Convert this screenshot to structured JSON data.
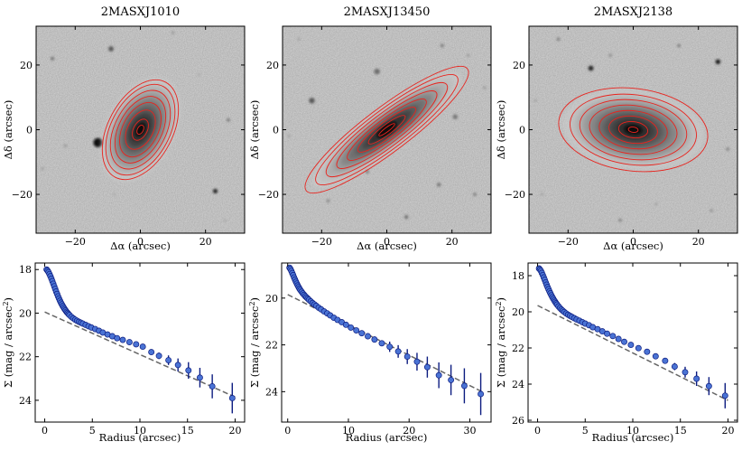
{
  "figure": {
    "colors": {
      "ellipse": "#e8241e",
      "marker_fill": "#4a73d4",
      "marker_edge": "#0c1c80",
      "errorbar": "#0c1c80",
      "fit_line": "#666666"
    },
    "image_xlabel": "Δα (arcsec)",
    "image_ylabel": "Δδ (arcsec)",
    "profile_xlabel": "Radius (arcsec)",
    "profile_ylabel": "Σ (mag / arcsec",
    "profile_ylabel_sup": "2",
    "profile_ylabel_end": ")"
  },
  "chart_data": [
    {
      "type": "image",
      "title": "2MASXJ1010",
      "xlabel": "Δα (arcsec)",
      "ylabel": "Δδ (arcsec)",
      "xlim": [
        -32,
        32
      ],
      "ylim": [
        -32,
        32
      ],
      "xticks": [
        -20,
        0,
        20
      ],
      "yticks": [
        -20,
        0,
        20
      ],
      "galaxy": {
        "semi_major": 13.5,
        "axis_ratio": 0.6,
        "position_angle_deg": 62
      },
      "isophote_semi_major": [
        1.5,
        3.5,
        6.5,
        9,
        11,
        13,
        15,
        16.5
      ]
    },
    {
      "type": "image",
      "title": "2MASXJ13450",
      "xlabel": "Δα (arcsec)",
      "ylabel": "Δδ (arcsec)",
      "xlim": [
        -32,
        32
      ],
      "ylim": [
        -32,
        32
      ],
      "xticks": [
        -20,
        0,
        20
      ],
      "yticks": [
        -20,
        0,
        20
      ],
      "galaxy": {
        "semi_major": 22,
        "axis_ratio": 0.22,
        "position_angle_deg": 37
      },
      "isophote_semi_major": [
        3,
        7,
        11,
        15,
        19,
        23,
        27,
        31
      ]
    },
    {
      "type": "image",
      "title": "2MASXJ2138",
      "xlabel": "Δα (arcsec)",
      "ylabel": "Δδ (arcsec)",
      "xlim": [
        -32,
        32
      ],
      "ylim": [
        -32,
        32
      ],
      "xticks": [
        -20,
        0,
        20
      ],
      "yticks": [
        -20,
        0,
        20
      ],
      "galaxy": {
        "semi_major": 17,
        "axis_ratio": 0.55,
        "position_angle_deg": -7
      },
      "isophote_semi_major": [
        1.5,
        4.5,
        7.5,
        10.5,
        13.5,
        16.5,
        19.5,
        23
      ]
    },
    {
      "type": "scatter",
      "xlabel": "Radius (arcsec)",
      "ylabel": "Σ (mag / arcsec²)",
      "xlim": [
        -1,
        21
      ],
      "ylim": [
        25,
        17.7
      ],
      "xticks": [
        0,
        5,
        10,
        15,
        20
      ],
      "yticks": [
        18,
        20,
        22,
        24
      ],
      "fit_line": {
        "x": [
          0,
          20
        ],
        "y": [
          19.95,
          23.85
        ]
      },
      "x": [
        0.2,
        0.3,
        0.4,
        0.5,
        0.6,
        0.7,
        0.8,
        0.9,
        1.0,
        1.1,
        1.2,
        1.3,
        1.4,
        1.5,
        1.6,
        1.7,
        1.8,
        1.9,
        2.0,
        2.1,
        2.2,
        2.3,
        2.4,
        2.5,
        2.6,
        2.8,
        3.0,
        3.2,
        3.4,
        3.6,
        3.8,
        4.0,
        4.3,
        4.6,
        4.9,
        5.3,
        5.7,
        6.1,
        6.6,
        7.1,
        7.6,
        8.2,
        8.9,
        9.6,
        10.3,
        11.2,
        12.0,
        13.0,
        14.0,
        15.1,
        16.3,
        17.6,
        19.7
      ],
      "y": [
        18.0,
        18.05,
        18.12,
        18.21,
        18.31,
        18.42,
        18.53,
        18.65,
        18.77,
        18.89,
        19.01,
        19.12,
        19.23,
        19.33,
        19.43,
        19.52,
        19.6,
        19.68,
        19.75,
        19.82,
        19.88,
        19.94,
        19.99,
        20.04,
        20.09,
        20.17,
        20.24,
        20.3,
        20.35,
        20.4,
        20.44,
        20.48,
        20.54,
        20.6,
        20.66,
        20.73,
        20.81,
        20.89,
        20.98,
        21.06,
        21.15,
        21.23,
        21.33,
        21.43,
        21.54,
        21.79,
        21.96,
        22.16,
        22.38,
        22.63,
        22.96,
        23.36,
        23.9
      ],
      "yerr": [
        0,
        0,
        0,
        0,
        0,
        0,
        0,
        0,
        0,
        0,
        0,
        0,
        0,
        0,
        0,
        0,
        0,
        0,
        0,
        0,
        0,
        0,
        0,
        0,
        0,
        0,
        0,
        0,
        0,
        0,
        0,
        0,
        0,
        0,
        0,
        0,
        0,
        0,
        0,
        0,
        0,
        0,
        0,
        0,
        0.05,
        0.1,
        0.15,
        0.22,
        0.3,
        0.38,
        0.45,
        0.55,
        0.7
      ]
    },
    {
      "type": "scatter",
      "xlabel": "Radius (arcsec)",
      "ylabel": "Σ (mag / arcsec²)",
      "xlim": [
        -1,
        33.5
      ],
      "ylim": [
        25.3,
        18.5
      ],
      "xticks": [
        0,
        10,
        20,
        30
      ],
      "yticks": [
        20,
        22,
        24
      ],
      "fit_line": {
        "x": [
          0,
          32
        ],
        "y": [
          19.85,
          24.0
        ]
      },
      "x": [
        0.3,
        0.45,
        0.6,
        0.75,
        0.9,
        1.05,
        1.2,
        1.35,
        1.5,
        1.65,
        1.8,
        1.95,
        2.1,
        2.3,
        2.5,
        2.7,
        2.9,
        3.1,
        3.3,
        3.5,
        3.8,
        4.1,
        4.4,
        4.7,
        5.1,
        5.5,
        6.0,
        6.5,
        7.0,
        7.6,
        8.2,
        8.9,
        9.6,
        10.4,
        11.3,
        12.2,
        13.2,
        14.3,
        15.5,
        16.8,
        18.2,
        19.7,
        21.3,
        23.0,
        24.9,
        26.9,
        29.1,
        31.8
      ],
      "y": [
        18.7,
        18.76,
        18.84,
        18.93,
        19.02,
        19.12,
        19.21,
        19.3,
        19.38,
        19.46,
        19.53,
        19.6,
        19.66,
        19.73,
        19.8,
        19.86,
        19.92,
        19.97,
        20.02,
        20.07,
        20.14,
        20.21,
        20.27,
        20.33,
        20.41,
        20.48,
        20.57,
        20.65,
        20.74,
        20.84,
        20.93,
        21.03,
        21.14,
        21.26,
        21.38,
        21.5,
        21.63,
        21.77,
        21.93,
        22.08,
        22.28,
        22.5,
        22.72,
        22.95,
        23.3,
        23.5,
        23.75,
        24.1
      ],
      "yerr": [
        0,
        0,
        0,
        0,
        0,
        0,
        0,
        0,
        0,
        0,
        0,
        0,
        0,
        0,
        0,
        0,
        0,
        0,
        0,
        0,
        0,
        0,
        0,
        0,
        0,
        0,
        0,
        0,
        0,
        0,
        0,
        0,
        0,
        0,
        0,
        0,
        0,
        0,
        0,
        0.22,
        0.27,
        0.32,
        0.38,
        0.45,
        0.55,
        0.65,
        0.75,
        0.9
      ]
    },
    {
      "type": "scatter",
      "xlabel": "Radius (arcsec)",
      "ylabel": "Σ (mag / arcsec²)",
      "xlim": [
        -1,
        21
      ],
      "ylim": [
        26.1,
        17.3
      ],
      "xticks": [
        0,
        5,
        10,
        15,
        20
      ],
      "yticks": [
        18,
        20,
        22,
        24,
        26
      ],
      "fit_line": {
        "x": [
          0,
          20
        ],
        "y": [
          19.65,
          24.9
        ]
      },
      "x": [
        0.15,
        0.25,
        0.35,
        0.45,
        0.55,
        0.65,
        0.75,
        0.85,
        0.95,
        1.05,
        1.15,
        1.25,
        1.35,
        1.45,
        1.55,
        1.65,
        1.75,
        1.85,
        1.95,
        2.05,
        2.2,
        2.35,
        2.5,
        2.65,
        2.8,
        3.0,
        3.2,
        3.4,
        3.6,
        3.85,
        4.1,
        4.4,
        4.7,
        5.0,
        5.4,
        5.8,
        6.3,
        6.8,
        7.3,
        7.9,
        8.5,
        9.1,
        9.8,
        10.6,
        11.5,
        12.4,
        13.4,
        14.4,
        15.5,
        16.7,
        18.0,
        19.7
      ],
      "y": [
        17.6,
        17.66,
        17.74,
        17.85,
        17.97,
        18.1,
        18.23,
        18.37,
        18.5,
        18.63,
        18.75,
        18.87,
        18.98,
        19.09,
        19.19,
        19.28,
        19.37,
        19.45,
        19.53,
        19.6,
        19.7,
        19.79,
        19.87,
        19.94,
        20.01,
        20.09,
        20.16,
        20.22,
        20.28,
        20.35,
        20.42,
        20.49,
        20.57,
        20.65,
        20.74,
        20.85,
        20.96,
        21.08,
        21.21,
        21.34,
        21.5,
        21.66,
        21.83,
        22.01,
        22.21,
        22.46,
        22.71,
        23.03,
        23.34,
        23.7,
        24.11,
        24.64
      ],
      "yerr": [
        0,
        0,
        0,
        0,
        0,
        0,
        0,
        0,
        0,
        0,
        0,
        0,
        0,
        0,
        0,
        0,
        0,
        0,
        0,
        0,
        0,
        0,
        0,
        0,
        0,
        0,
        0,
        0,
        0,
        0,
        0,
        0,
        0,
        0,
        0,
        0,
        0,
        0,
        0,
        0,
        0,
        0,
        0,
        0,
        0.05,
        0.1,
        0.15,
        0.2,
        0.3,
        0.4,
        0.5,
        0.7
      ]
    }
  ]
}
